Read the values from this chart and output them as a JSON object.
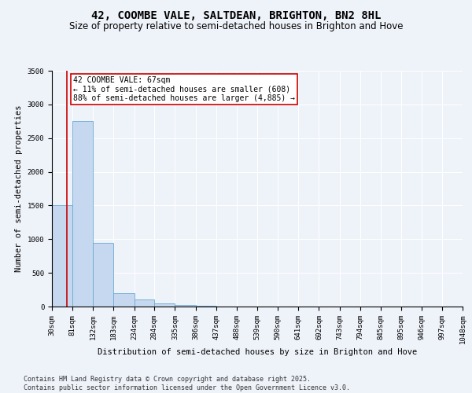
{
  "title": "42, COOMBE VALE, SALTDEAN, BRIGHTON, BN2 8HL",
  "subtitle": "Size of property relative to semi-detached houses in Brighton and Hove",
  "xlabel": "Distribution of semi-detached houses by size in Brighton and Hove",
  "ylabel": "Number of semi-detached properties",
  "bin_edges": [
    30,
    81,
    132,
    183,
    234,
    284,
    335,
    386,
    437,
    488,
    539,
    590,
    641,
    692,
    743,
    794,
    845,
    895,
    946,
    997,
    1048
  ],
  "bar_heights": [
    1500,
    2750,
    950,
    200,
    100,
    45,
    20,
    8,
    3,
    2,
    1,
    0,
    0,
    0,
    0,
    0,
    0,
    0,
    0,
    0
  ],
  "bar_color": "#c5d8ef",
  "bar_edge_color": "#6aaad4",
  "property_size": 67,
  "annotation_title": "42 COOMBE VALE: 67sqm",
  "annotation_line1": "← 11% of semi-detached houses are smaller (608)",
  "annotation_line2": "88% of semi-detached houses are larger (4,885) →",
  "vline_color": "#cc0000",
  "annotation_box_color": "#ffffff",
  "annotation_box_edge": "#cc0000",
  "ylim": [
    0,
    3500
  ],
  "yticks": [
    0,
    500,
    1000,
    1500,
    2000,
    2500,
    3000,
    3500
  ],
  "background_color": "#eef2f9",
  "footer_line1": "Contains HM Land Registry data © Crown copyright and database right 2025.",
  "footer_line2": "Contains public sector information licensed under the Open Government Licence v3.0.",
  "grid_color": "#ffffff",
  "title_fontsize": 10,
  "subtitle_fontsize": 8.5,
  "tick_label_fontsize": 6.5,
  "ylabel_fontsize": 7.5,
  "xlabel_fontsize": 7.5,
  "annotation_fontsize": 7,
  "footer_fontsize": 6
}
